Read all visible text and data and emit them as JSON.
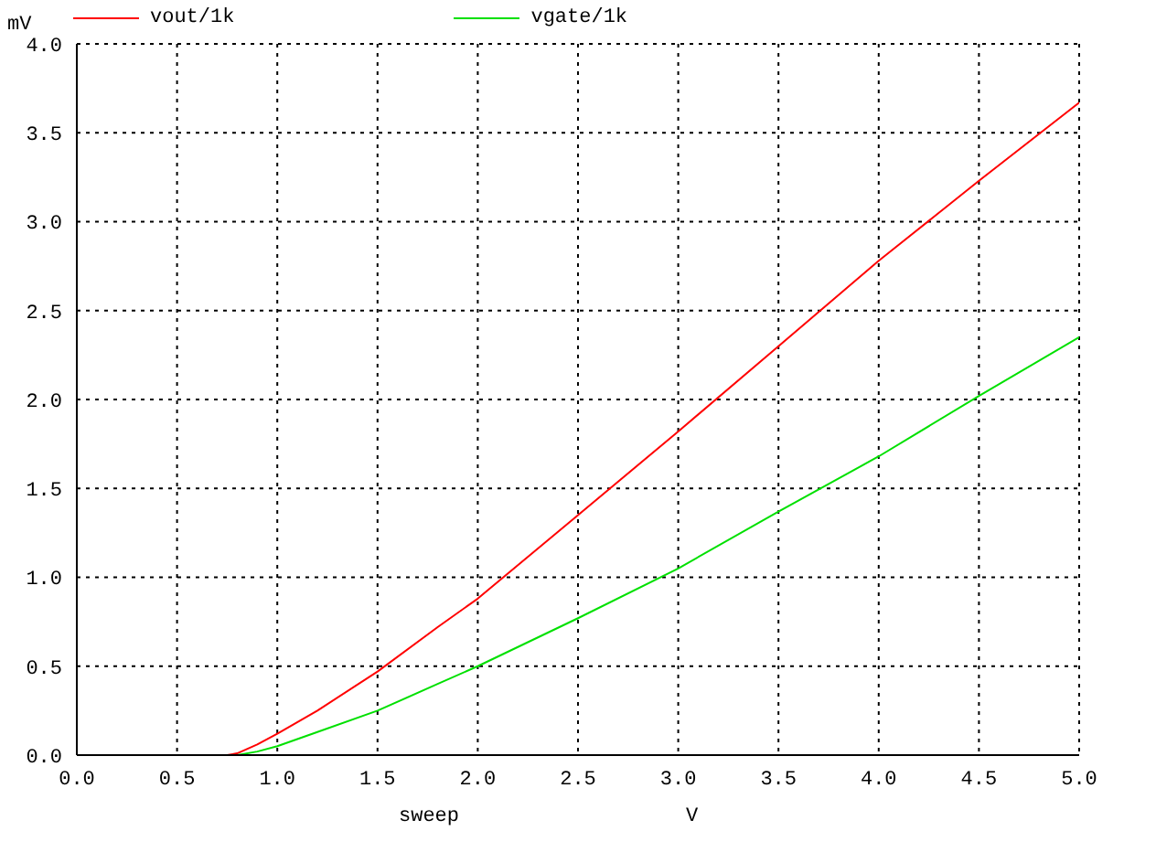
{
  "chart_data": {
    "type": "line",
    "xlabel": "sweep",
    "ylabel": "mV",
    "annotations": [
      "V"
    ],
    "xlim": [
      0,
      5
    ],
    "ylim": [
      0,
      4
    ],
    "xticks": [
      {
        "value": 0,
        "label": "0.0"
      },
      {
        "value": 0.5,
        "label": "0.5"
      },
      {
        "value": 1,
        "label": "1.0"
      },
      {
        "value": 1.5,
        "label": "1.5"
      },
      {
        "value": 2,
        "label": "2.0"
      },
      {
        "value": 2.5,
        "label": "2.5"
      },
      {
        "value": 3,
        "label": "3.0"
      },
      {
        "value": 3.5,
        "label": "3.5"
      },
      {
        "value": 4,
        "label": "4.0"
      },
      {
        "value": 4.5,
        "label": "4.5"
      },
      {
        "value": 5,
        "label": "5.0"
      }
    ],
    "yticks": [
      {
        "value": 0,
        "label": "0.0"
      },
      {
        "value": 0.5,
        "label": "0.5"
      },
      {
        "value": 1,
        "label": "1.0"
      },
      {
        "value": 1.5,
        "label": "1.5"
      },
      {
        "value": 2,
        "label": "2.0"
      },
      {
        "value": 2.5,
        "label": "2.5"
      },
      {
        "value": 3,
        "label": "3.0"
      },
      {
        "value": 3.5,
        "label": "3.5"
      },
      {
        "value": 4,
        "label": "4.0"
      }
    ],
    "grid": true,
    "legend": "top",
    "line_style": "solid",
    "marker": "none",
    "series": [
      {
        "name": "vout/1k",
        "color": "#ff0000",
        "x": [
          0,
          0.5,
          0.75,
          0.8,
          0.9,
          1.0,
          1.2,
          1.5,
          1.8,
          2.0,
          2.5,
          3.0,
          3.5,
          4.0,
          4.5,
          5.0
        ],
        "values": [
          0,
          0,
          0,
          0.01,
          0.06,
          0.12,
          0.25,
          0.47,
          0.72,
          0.88,
          1.35,
          1.82,
          2.3,
          2.78,
          3.23,
          3.67
        ]
      },
      {
        "name": "vgate/1k",
        "color": "#00e000",
        "x": [
          0,
          0.5,
          0.8,
          0.9,
          1.0,
          1.2,
          1.5,
          1.8,
          2.0,
          2.5,
          3.0,
          3.5,
          4.0,
          4.5,
          5.0
        ],
        "values": [
          0,
          0,
          0,
          0.02,
          0.05,
          0.13,
          0.25,
          0.4,
          0.5,
          0.77,
          1.05,
          1.37,
          1.68,
          2.02,
          2.35
        ]
      }
    ]
  }
}
